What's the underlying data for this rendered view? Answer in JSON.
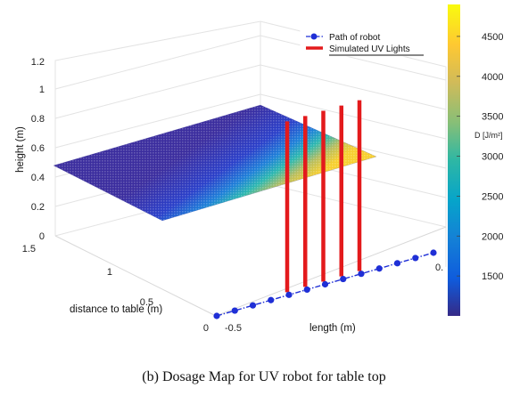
{
  "chart_data": {
    "type": "surface3d",
    "zlabel": "height (m)",
    "ylabel": "distance to table (m)",
    "xlabel": "length (m)",
    "z_ticks": [
      "0",
      "0.2",
      "0.4",
      "0.6",
      "0.8",
      "1",
      "1.2"
    ],
    "y_ticks": [
      "0",
      "0.5",
      "1",
      "1.5"
    ],
    "x_ticks": [
      "-0.5",
      "0."
    ],
    "colorbar": {
      "label": "D [J/m²]",
      "ticks": [
        "1500",
        "2000",
        "2500",
        "3000",
        "3500",
        "4000",
        "4500"
      ],
      "min": 1000,
      "max": 4900
    },
    "legend": [
      {
        "label": "Path of robot",
        "color": "#1f2fd6",
        "style": "dash-dot-marker"
      },
      {
        "label": "Simulated UV Lights",
        "color": "#e31a1c",
        "style": "thick-line"
      }
    ],
    "surface": {
      "height": 0.5,
      "dosage_range": [
        1200,
        4800
      ]
    },
    "uv_lights": 5,
    "robot_path_points": 13
  },
  "caption": "(b) Dosage Map for UV robot for table top"
}
